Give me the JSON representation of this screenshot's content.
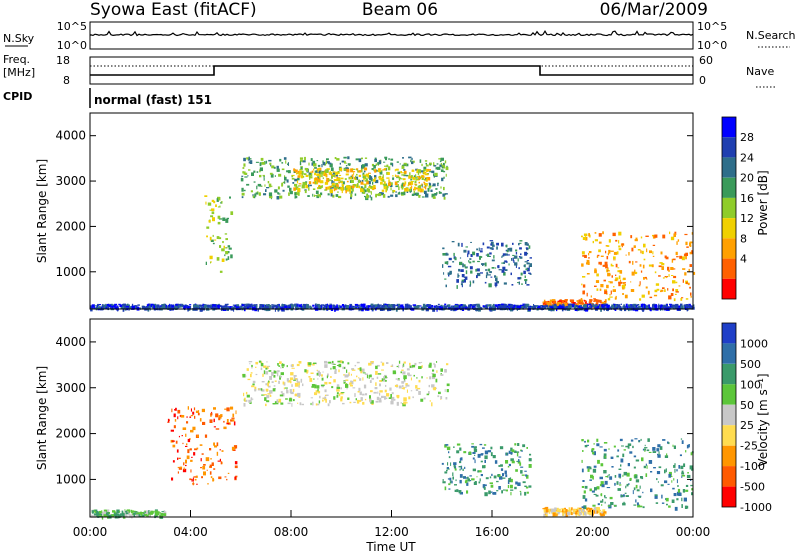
{
  "header": {
    "title_left": "Syowa East (fitACF)",
    "title_center": "Beam 06",
    "title_right": "06/Mar/2009"
  },
  "top_panels": {
    "nsky_label": "N.Sky",
    "nsky_ticks": [
      "10^5",
      "10^0"
    ],
    "nsearch_label": "N.Search",
    "nsearch_ticks": [
      "10^5",
      "10^0"
    ],
    "freq_label_line1": "Freq.",
    "freq_label_line2": "[MHz]",
    "freq_ticks": [
      "18",
      "8"
    ],
    "nave_label": "Nave",
    "nave_ticks": [
      "60",
      "0"
    ],
    "cpid_label": "CPID",
    "cpid_value": "normal (fast) 151"
  },
  "colors": {
    "power_scale": [
      "#0000ff",
      "#1f3fb0",
      "#2e6e8a",
      "#3a9a5a",
      "#8fcc2a",
      "#f0d000",
      "#ffa000",
      "#ff6000",
      "#ff0000"
    ],
    "velocity_scale": [
      "#1f3fc8",
      "#2f6fa8",
      "#3a9a6a",
      "#5cc63a",
      "#c8c8c8",
      "#ffdc50",
      "#ff9600",
      "#ff5a00",
      "#ff0000"
    ]
  },
  "chart_data": [
    {
      "type": "heatmap",
      "name": "power",
      "ylabel": "Slant Range [km]",
      "colorbar_label": "Power [dB]",
      "colorbar_ticks": [
        "28",
        "24",
        "20",
        "16",
        "12",
        "8",
        "4"
      ],
      "ylim": [
        180,
        4500
      ],
      "yticks": [
        "4000",
        "3000",
        "2000",
        "1000"
      ],
      "ytick_values": [
        4000,
        3000,
        2000,
        1000
      ],
      "xlim": [
        0,
        24
      ],
      "regions": [
        {
          "t0": 4.5,
          "t1": 5.6,
          "r0": 1000,
          "r1": 2700,
          "level": 4
        },
        {
          "t0": 6.0,
          "t1": 14.2,
          "r0": 2650,
          "r1": 3550,
          "level": 3
        },
        {
          "t0": 8.0,
          "t1": 13.5,
          "r0": 2800,
          "r1": 3300,
          "level": 5
        },
        {
          "t0": 14.0,
          "t1": 17.5,
          "r0": 700,
          "r1": 1700,
          "level": 2
        },
        {
          "t0": 18.0,
          "t1": 20.5,
          "r0": 250,
          "r1": 400,
          "level": 7
        },
        {
          "t0": 19.5,
          "t1": 24.0,
          "r0": 400,
          "r1": 1900,
          "level": 6
        },
        {
          "t0": 0.0,
          "t1": 24.0,
          "r0": 200,
          "r1": 300,
          "level": 1
        }
      ]
    },
    {
      "type": "heatmap",
      "name": "velocity",
      "ylabel": "Slant Range [km]",
      "colorbar_label": "Velocity [m s⁻¹]",
      "colorbar_ticks": [
        "1000",
        "500",
        "100",
        "50",
        "25",
        "-25",
        "-100",
        "-500",
        "-1000"
      ],
      "ylim": [
        180,
        4500
      ],
      "yticks": [
        "4000",
        "3000",
        "2000",
        "1000"
      ],
      "ytick_values": [
        4000,
        3000,
        2000,
        1000
      ],
      "xlim": [
        0,
        24
      ],
      "xlabel": "Time UT",
      "xticks": [
        "00:00",
        "04:00",
        "08:00",
        "12:00",
        "16:00",
        "20:00",
        "00:00"
      ],
      "xtick_values": [
        0,
        4,
        8,
        12,
        16,
        20,
        24
      ],
      "regions": [
        {
          "t0": 3.0,
          "t1": 5.8,
          "r0": 900,
          "r1": 2600,
          "level": 7
        },
        {
          "t0": 6.0,
          "t1": 14.2,
          "r0": 2650,
          "r1": 3600,
          "level": 4
        },
        {
          "t0": 14.0,
          "t1": 17.5,
          "r0": 700,
          "r1": 1800,
          "level": 2
        },
        {
          "t0": 18.0,
          "t1": 20.5,
          "r0": 250,
          "r1": 400,
          "level": 5
        },
        {
          "t0": 19.5,
          "t1": 24.0,
          "r0": 400,
          "r1": 1900,
          "level": 2
        },
        {
          "t0": 0.0,
          "t1": 3.0,
          "r0": 200,
          "r1": 350,
          "level": 3
        }
      ]
    }
  ]
}
